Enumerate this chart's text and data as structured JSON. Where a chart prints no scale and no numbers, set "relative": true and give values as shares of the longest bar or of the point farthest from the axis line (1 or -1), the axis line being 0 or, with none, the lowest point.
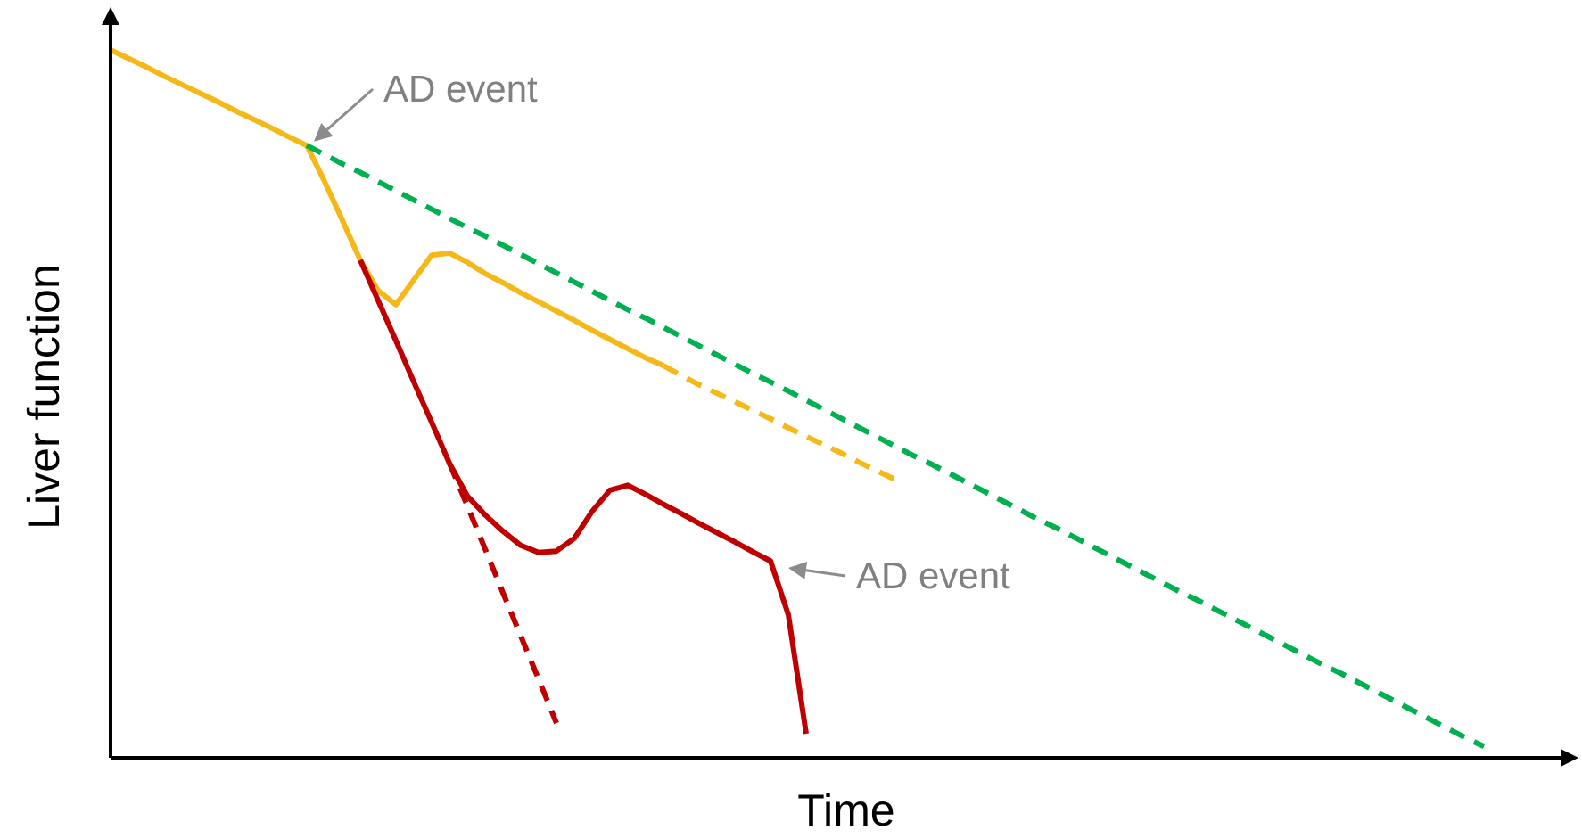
{
  "chart_data": {
    "type": "line",
    "relative": true,
    "xlabel": "Time",
    "ylabel": "Liver function",
    "categories": [
      null,
      null,
      null,
      null,
      null,
      null,
      null,
      null,
      null,
      null,
      null,
      null,
      null,
      null,
      null,
      null,
      null,
      null,
      null,
      null,
      null,
      null,
      null,
      null,
      null,
      null,
      null,
      null,
      null,
      null,
      null,
      null,
      null,
      null,
      null,
      null,
      null,
      null,
      null,
      null,
      null,
      null,
      null,
      null,
      null,
      null,
      null,
      null,
      null,
      null,
      null,
      null,
      null,
      null,
      null,
      null,
      null,
      null,
      null,
      null,
      null,
      null,
      null,
      null,
      null,
      null,
      null,
      null,
      null,
      null,
      null,
      null,
      null,
      null,
      null,
      null,
      null,
      null,
      null,
      null,
      null,
      null,
      null
    ],
    "series": [
      {
        "color": "#f4b919",
        "line_style": "solid",
        "values": [
          1.0,
          0.988,
          0.976,
          0.963,
          0.951,
          0.939,
          0.927,
          0.914,
          0.902,
          0.89,
          0.877,
          0.865,
          0.814,
          0.759,
          0.703,
          0.66,
          0.64,
          0.675,
          0.71,
          0.713,
          0.7,
          0.684,
          0.671,
          0.657,
          0.644,
          0.631,
          0.618,
          0.604,
          0.591,
          0.578,
          0.565,
          0.554,
          null,
          null,
          null,
          null,
          null,
          null,
          null,
          null,
          null,
          null,
          null,
          null,
          null,
          null,
          null,
          null,
          null,
          null,
          null,
          null,
          null,
          null,
          null,
          null,
          null,
          null,
          null,
          null,
          null,
          null,
          null,
          null,
          null,
          null,
          null,
          null,
          null,
          null,
          null,
          null,
          null,
          null,
          null,
          null,
          null,
          null,
          null,
          null,
          null,
          null,
          null
        ]
      },
      {
        "color": "#f4b919",
        "line_style": "dashed",
        "values": [
          null,
          null,
          null,
          null,
          null,
          null,
          null,
          null,
          null,
          null,
          null,
          null,
          null,
          null,
          null,
          null,
          null,
          null,
          null,
          null,
          null,
          null,
          null,
          null,
          null,
          null,
          null,
          null,
          null,
          null,
          null,
          0.554,
          0.54,
          0.527,
          0.515,
          0.503,
          0.491,
          0.479,
          0.466,
          0.454,
          0.442,
          0.43,
          0.417,
          0.405,
          0.393,
          null,
          null,
          null,
          null,
          null,
          null,
          null,
          null,
          null,
          null,
          null,
          null,
          null,
          null,
          null,
          null,
          null,
          null,
          null,
          null,
          null,
          null,
          null,
          null,
          null,
          null,
          null,
          null,
          null,
          null,
          null,
          null,
          null,
          null,
          null,
          null,
          null,
          null
        ]
      },
      {
        "color": "#00b050",
        "line_style": "dashed",
        "values": [
          null,
          null,
          null,
          null,
          null,
          null,
          null,
          null,
          null,
          null,
          null,
          0.865,
          0.852,
          0.839,
          0.827,
          0.814,
          0.801,
          0.788,
          0.775,
          0.762,
          0.749,
          0.737,
          0.724,
          0.711,
          0.698,
          0.685,
          0.672,
          0.659,
          0.646,
          0.633,
          0.621,
          0.608,
          0.595,
          0.582,
          0.569,
          0.556,
          0.543,
          0.531,
          0.518,
          0.505,
          0.492,
          0.479,
          0.466,
          0.453,
          0.44,
          0.427,
          0.415,
          0.402,
          0.389,
          0.376,
          0.363,
          0.35,
          0.337,
          0.325,
          0.312,
          0.299,
          0.286,
          0.273,
          0.26,
          0.247,
          0.234,
          0.222,
          0.209,
          0.196,
          0.183,
          0.17,
          0.157,
          0.144,
          0.131,
          0.119,
          0.106,
          0.093,
          0.08,
          0.067,
          0.054,
          0.041,
          0.028,
          0.016,
          null,
          null,
          null,
          null,
          null
        ]
      },
      {
        "color": "#c00000",
        "line_style": "solid",
        "values": [
          null,
          null,
          null,
          null,
          null,
          null,
          null,
          null,
          null,
          null,
          null,
          null,
          null,
          null,
          0.703,
          0.646,
          0.589,
          0.531,
          0.474,
          0.416,
          0.37,
          0.343,
          0.32,
          0.3,
          0.29,
          0.292,
          0.31,
          0.348,
          0.378,
          0.385,
          0.372,
          0.358,
          0.345,
          0.331,
          0.318,
          0.305,
          0.291,
          0.278,
          0.202,
          0.034,
          null,
          null,
          null,
          null,
          null,
          null,
          null,
          null,
          null,
          null,
          null,
          null,
          null,
          null,
          null,
          null,
          null,
          null,
          null,
          null,
          null,
          null,
          null,
          null,
          null,
          null,
          null,
          null,
          null,
          null,
          null,
          null,
          null,
          null,
          null,
          null,
          null,
          null,
          null,
          null,
          null,
          null,
          null
        ]
      },
      {
        "color": "#c00000",
        "line_style": "dashed",
        "values": [
          null,
          null,
          null,
          null,
          null,
          null,
          null,
          null,
          null,
          null,
          null,
          null,
          null,
          null,
          null,
          null,
          null,
          null,
          null,
          0.416,
          0.356,
          0.295,
          0.233,
          0.172,
          0.111,
          0.049,
          null,
          null,
          null,
          null,
          null,
          null,
          null,
          null,
          null,
          null,
          null,
          null,
          null,
          null,
          null,
          null,
          null,
          null,
          null,
          null,
          null,
          null,
          null,
          null,
          null,
          null,
          null,
          null,
          null,
          null,
          null,
          null,
          null,
          null,
          null,
          null,
          null,
          null,
          null,
          null,
          null,
          null,
          null,
          null,
          null,
          null,
          null,
          null,
          null,
          null,
          null,
          null,
          null,
          null,
          null,
          null,
          null
        ]
      }
    ],
    "annotations": [
      "AD event",
      "AD event"
    ]
  }
}
